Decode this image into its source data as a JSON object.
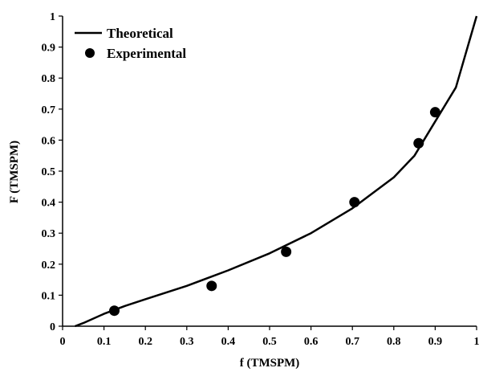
{
  "chart_data": {
    "type": "scatter",
    "xlabel": "f (TMSPM)",
    "ylabel": "F (TMSPM)",
    "xlim": [
      0,
      1
    ],
    "ylim": [
      0,
      1
    ],
    "x_ticks": [
      "0",
      "0.1",
      "0.2",
      "0.3",
      "0.4",
      "0.5",
      "0.6",
      "0.7",
      "0.8",
      "0.9",
      "1"
    ],
    "y_ticks": [
      "0",
      "0.1",
      "0.2",
      "0.3",
      "0.4",
      "0.5",
      "0.6",
      "0.7",
      "0.8",
      "0.9",
      "1"
    ],
    "grid": false,
    "legend_position": "top-left",
    "series": [
      {
        "name": "Theoretical",
        "kind": "line",
        "color": "#000000",
        "x": [
          0.03,
          0.05,
          0.1,
          0.15,
          0.2,
          0.3,
          0.4,
          0.5,
          0.6,
          0.7,
          0.75,
          0.8,
          0.85,
          0.9,
          0.95,
          1.0
        ],
        "y": [
          0.0,
          0.01,
          0.04,
          0.065,
          0.087,
          0.13,
          0.18,
          0.235,
          0.3,
          0.38,
          0.43,
          0.48,
          0.55,
          0.66,
          0.77,
          1.0
        ]
      },
      {
        "name": "Experimental",
        "kind": "scatter",
        "color": "#000000",
        "x": [
          0.125,
          0.36,
          0.54,
          0.705,
          0.86,
          0.9
        ],
        "y": [
          0.05,
          0.13,
          0.24,
          0.4,
          0.59,
          0.69
        ]
      }
    ]
  }
}
